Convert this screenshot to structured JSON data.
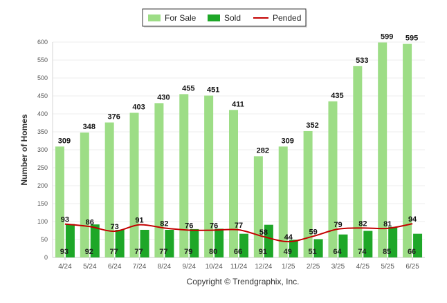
{
  "chart_data": {
    "type": "bar",
    "title": "",
    "xlabel": "",
    "ylabel": "Number of Homes",
    "ylim": [
      0,
      600
    ],
    "yticks": [
      0,
      50,
      100,
      150,
      200,
      250,
      300,
      350,
      400,
      450,
      500,
      550,
      600
    ],
    "grid": true,
    "legend_position": "top-center",
    "categories": [
      "4/24",
      "5/24",
      "6/24",
      "7/24",
      "8/24",
      "9/24",
      "10/24",
      "11/24",
      "12/24",
      "1/25",
      "2/25",
      "3/25",
      "4/25",
      "5/25",
      "6/25"
    ],
    "series": [
      {
        "name": "For Sale",
        "type": "bar",
        "color": "#9ddd86",
        "values": [
          309,
          348,
          376,
          403,
          430,
          455,
          451,
          411,
          282,
          309,
          352,
          435,
          533,
          599,
          595
        ]
      },
      {
        "name": "Sold",
        "type": "bar",
        "color": "#1ea728",
        "values": [
          93,
          92,
          77,
          77,
          77,
          79,
          80,
          66,
          91,
          49,
          51,
          64,
          74,
          85,
          66
        ]
      },
      {
        "name": "Pended",
        "type": "line",
        "color": "#c30000",
        "values": [
          93,
          86,
          73,
          91,
          82,
          76,
          76,
          77,
          58,
          44,
          59,
          79,
          82,
          81,
          94
        ]
      }
    ],
    "footer": "Copyright © Trendgraphix, Inc."
  }
}
